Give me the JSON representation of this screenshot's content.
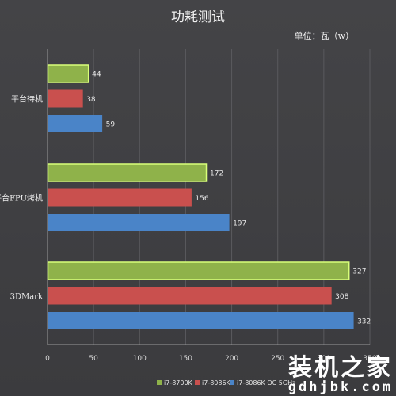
{
  "chart_data": {
    "type": "bar",
    "orientation": "horizontal",
    "title": "功耗测试",
    "unit_label": "单位：瓦（w）",
    "categories": [
      "平台待机",
      "平台FPU烤机",
      "3DMark"
    ],
    "series": [
      {
        "name": "i7-8700K",
        "values": [
          44,
          172,
          327
        ],
        "color": "#8fb24a"
      },
      {
        "name": "i7-8086K",
        "values": [
          38,
          156,
          308
        ],
        "color": "#c9504e"
      },
      {
        "name": "i7-8086K OC 5GHz",
        "values": [
          59,
          197,
          332
        ],
        "color": "#4a84c8"
      }
    ],
    "xlim": [
      0,
      350
    ],
    "xticks": [
      0,
      50,
      100,
      150,
      200,
      250,
      300,
      350
    ],
    "xtick_labels": [
      "0",
      "50",
      "100",
      "150",
      "200",
      "250",
      "300",
      "350"
    ],
    "grid": true,
    "legend_position": "bottom"
  },
  "watermark": {
    "main": "装机之家",
    "sub": "gdhjbk.com"
  }
}
